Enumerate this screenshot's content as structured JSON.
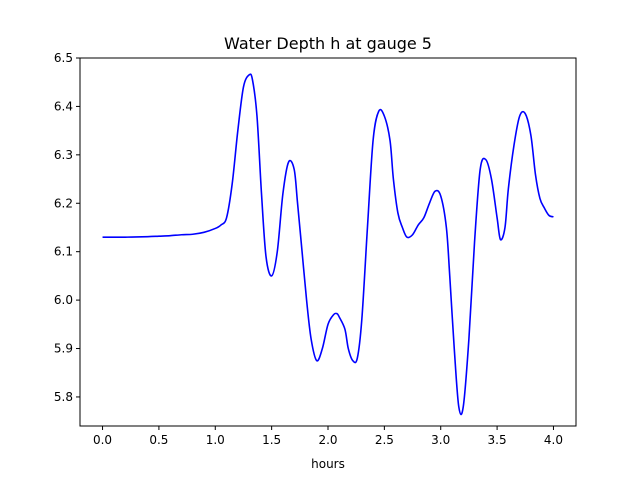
{
  "chart_data": {
    "type": "line",
    "title": "Water Depth h at gauge 5",
    "xlabel": "hours",
    "ylabel": "",
    "xlim": [
      -0.2,
      4.2
    ],
    "ylim": [
      5.74,
      6.5
    ],
    "xticks": [
      0.0,
      0.5,
      1.0,
      1.5,
      2.0,
      2.5,
      3.0,
      3.5,
      4.0
    ],
    "xtick_labels": [
      "0.0",
      "0.5",
      "1.0",
      "1.5",
      "2.0",
      "2.5",
      "3.0",
      "3.5",
      "4.0"
    ],
    "yticks": [
      5.8,
      5.9,
      6.0,
      6.1,
      6.2,
      6.3,
      6.4,
      6.5
    ],
    "ytick_labels": [
      "5.8",
      "5.9",
      "6.0",
      "6.1",
      "6.2",
      "6.3",
      "6.4",
      "6.5"
    ],
    "grid": false,
    "series": [
      {
        "name": "",
        "color": "#0000ff",
        "x": [
          0.0,
          0.2,
          0.4,
          0.5,
          0.6,
          0.7,
          0.8,
          0.9,
          1.0,
          1.05,
          1.1,
          1.15,
          1.2,
          1.25,
          1.3,
          1.33,
          1.37,
          1.41,
          1.45,
          1.5,
          1.55,
          1.6,
          1.65,
          1.7,
          1.73,
          1.77,
          1.81,
          1.85,
          1.9,
          1.95,
          2.0,
          2.05,
          2.08,
          2.1,
          2.15,
          2.18,
          2.22,
          2.26,
          2.3,
          2.35,
          2.4,
          2.45,
          2.5,
          2.55,
          2.58,
          2.62,
          2.66,
          2.7,
          2.75,
          2.8,
          2.85,
          2.9,
          2.95,
          3.0,
          3.05,
          3.08,
          3.12,
          3.16,
          3.2,
          3.25,
          3.3,
          3.35,
          3.4,
          3.45,
          3.5,
          3.53,
          3.57,
          3.6,
          3.65,
          3.7,
          3.75,
          3.8,
          3.84,
          3.88,
          3.92,
          3.96,
          4.0
        ],
        "y": [
          6.13,
          6.13,
          6.131,
          6.132,
          6.133,
          6.135,
          6.136,
          6.14,
          6.148,
          6.155,
          6.17,
          6.24,
          6.35,
          6.44,
          6.465,
          6.455,
          6.38,
          6.22,
          6.09,
          6.05,
          6.1,
          6.22,
          6.285,
          6.27,
          6.2,
          6.1,
          6.0,
          5.92,
          5.875,
          5.9,
          5.95,
          5.97,
          5.972,
          5.965,
          5.94,
          5.9,
          5.875,
          5.88,
          5.96,
          6.15,
          6.33,
          6.39,
          6.38,
          6.33,
          6.25,
          6.18,
          6.15,
          6.13,
          6.135,
          6.155,
          6.17,
          6.2,
          6.225,
          6.215,
          6.15,
          6.05,
          5.9,
          5.78,
          5.78,
          5.92,
          6.12,
          6.27,
          6.29,
          6.25,
          6.17,
          6.125,
          6.15,
          6.23,
          6.32,
          6.38,
          6.385,
          6.34,
          6.26,
          6.21,
          6.19,
          6.175,
          6.172
        ]
      }
    ]
  }
}
